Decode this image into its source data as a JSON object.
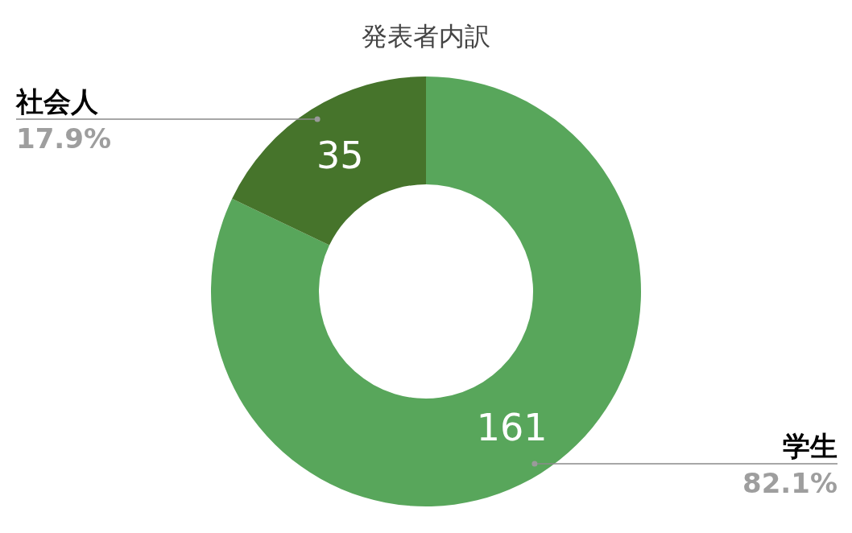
{
  "chart_data": {
    "type": "donut",
    "title": "発表者内訳",
    "categories": [
      "学生",
      "社会人"
    ],
    "values": [
      82.1,
      17.9
    ],
    "colors": [
      "#58a65b",
      "#46742b"
    ],
    "value_labels": [
      "82.1%",
      "17.9%"
    ],
    "annotations": [
      "161",
      "35"
    ]
  }
}
